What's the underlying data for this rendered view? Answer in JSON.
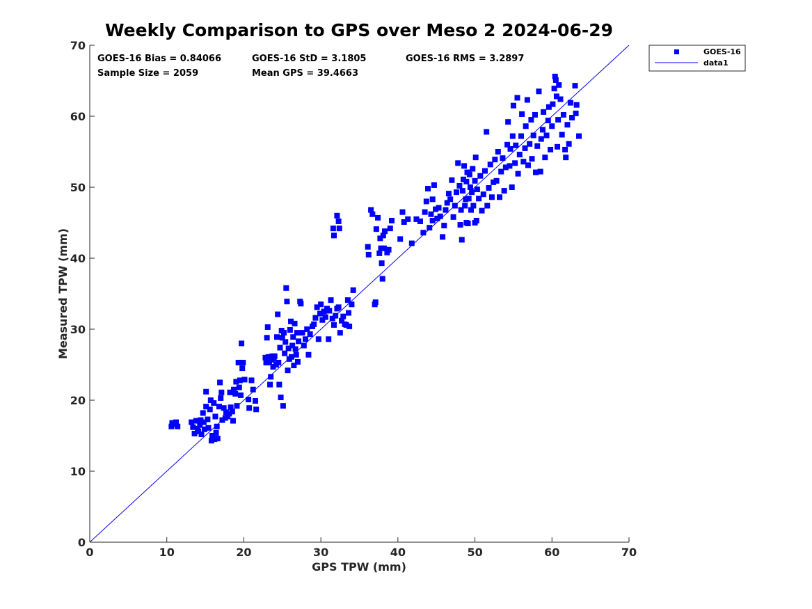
{
  "chart_data": {
    "type": "scatter",
    "title": "Weekly Comparison to GPS over Meso 2 2024-06-29",
    "xlabel": "GPS TPW (mm)",
    "ylabel": "Measured TPW (mm)",
    "xlim": [
      0,
      70
    ],
    "ylim": [
      0,
      70
    ],
    "xticks": [
      "0",
      "10",
      "20",
      "30",
      "40",
      "50",
      "60",
      "70"
    ],
    "yticks": [
      "0",
      "10",
      "20",
      "30",
      "40",
      "50",
      "60",
      "70"
    ],
    "grid": false,
    "legend_position": "outside top-right",
    "stats": {
      "bias": "GOES-16 Bias = 0.84066",
      "std": "GOES-16 StD = 3.1805",
      "rms": "GOES-16 RMS = 3.2897",
      "sample_size": "Sample Size = 2059",
      "mean_gps": "Mean GPS = 39.4663"
    },
    "series": [
      {
        "name": "GOES-16",
        "marker": "square",
        "color": "#0000ff",
        "points": [
          [
            10.6,
            16.3
          ],
          [
            10.7,
            16.8
          ],
          [
            11.2,
            16.9
          ],
          [
            11.4,
            16.3
          ],
          [
            11.1,
            16.6
          ],
          [
            13.2,
            16.9
          ],
          [
            13.4,
            16.2
          ],
          [
            13.6,
            15.3
          ],
          [
            13.8,
            17.1
          ],
          [
            14.0,
            16.0
          ],
          [
            14.1,
            15.6
          ],
          [
            14.3,
            16.5
          ],
          [
            14.4,
            17.2
          ],
          [
            14.5,
            15.2
          ],
          [
            14.7,
            18.2
          ],
          [
            14.8,
            16.9
          ],
          [
            14.9,
            15.9
          ],
          [
            15.1,
            19.1
          ],
          [
            15.1,
            21.2
          ],
          [
            15.3,
            17.3
          ],
          [
            15.4,
            16.1
          ],
          [
            15.6,
            18.7
          ],
          [
            15.7,
            20.0
          ],
          [
            15.8,
            14.3
          ],
          [
            15.9,
            15.0
          ],
          [
            16.1,
            19.6
          ],
          [
            16.2,
            14.5
          ],
          [
            16.3,
            17.7
          ],
          [
            16.4,
            15.4
          ],
          [
            16.5,
            16.3
          ],
          [
            16.6,
            14.6
          ],
          [
            16.8,
            19.1
          ],
          [
            16.9,
            22.5
          ],
          [
            17.0,
            20.3
          ],
          [
            17.1,
            21.1
          ],
          [
            17.2,
            17.2
          ],
          [
            17.4,
            18.9
          ],
          [
            17.6,
            17.5
          ],
          [
            17.7,
            18.3
          ],
          [
            17.9,
            17.7
          ],
          [
            18.1,
            18.1
          ],
          [
            18.2,
            21.1
          ],
          [
            18.3,
            19.0
          ],
          [
            18.5,
            18.4
          ],
          [
            18.6,
            17.1
          ],
          [
            18.7,
            21.5
          ],
          [
            18.9,
            20.9
          ],
          [
            19.0,
            22.6
          ],
          [
            19.1,
            19.2
          ],
          [
            19.3,
            25.3
          ],
          [
            19.4,
            21.8
          ],
          [
            19.5,
            22.8
          ],
          [
            19.6,
            20.7
          ],
          [
            19.7,
            28.0
          ],
          [
            19.8,
            24.5
          ],
          [
            19.9,
            25.3
          ],
          [
            20.1,
            22.9
          ],
          [
            20.6,
            20.1
          ],
          [
            20.7,
            18.9
          ],
          [
            21.0,
            22.8
          ],
          [
            21.2,
            21.5
          ],
          [
            21.5,
            19.9
          ],
          [
            21.6,
            18.7
          ],
          [
            22.8,
            26.0
          ],
          [
            22.9,
            25.3
          ],
          [
            23.0,
            28.8
          ],
          [
            23.1,
            30.3
          ],
          [
            23.2,
            26.1
          ],
          [
            23.3,
            25.3
          ],
          [
            23.4,
            22.2
          ],
          [
            23.5,
            23.3
          ],
          [
            23.6,
            25.7
          ],
          [
            23.7,
            26.2
          ],
          [
            23.8,
            24.7
          ],
          [
            23.9,
            25.8
          ],
          [
            24.0,
            26.2
          ],
          [
            24.2,
            25.0
          ],
          [
            24.3,
            28.9
          ],
          [
            24.4,
            32.1
          ],
          [
            24.5,
            25.3
          ],
          [
            24.6,
            22.2
          ],
          [
            24.7,
            27.4
          ],
          [
            24.8,
            20.4
          ],
          [
            24.9,
            29.8
          ],
          [
            25.0,
            28.8
          ],
          [
            25.1,
            19.2
          ],
          [
            25.2,
            29.5
          ],
          [
            25.3,
            26.6
          ],
          [
            25.4,
            28.2
          ],
          [
            25.5,
            35.8
          ],
          [
            25.6,
            33.9
          ],
          [
            25.7,
            24.2
          ],
          [
            25.8,
            27.3
          ],
          [
            25.9,
            25.8
          ],
          [
            26.0,
            29.9
          ],
          [
            26.1,
            31.1
          ],
          [
            26.2,
            26.1
          ],
          [
            26.3,
            27.7
          ],
          [
            26.4,
            28.9
          ],
          [
            26.5,
            24.9
          ],
          [
            26.6,
            30.8
          ],
          [
            26.7,
            27.2
          ],
          [
            26.8,
            26.4
          ],
          [
            26.9,
            29.5
          ],
          [
            27.0,
            25.4
          ],
          [
            27.1,
            28.3
          ],
          [
            27.3,
            33.9
          ],
          [
            27.4,
            33.6
          ],
          [
            27.6,
            29.5
          ],
          [
            27.8,
            27.7
          ],
          [
            28.0,
            28.6
          ],
          [
            28.2,
            30.0
          ],
          [
            28.4,
            26.4
          ],
          [
            28.6,
            29.3
          ],
          [
            28.9,
            30.4
          ],
          [
            29.1,
            30.7
          ],
          [
            29.3,
            31.6
          ],
          [
            29.5,
            33.1
          ],
          [
            29.7,
            28.6
          ],
          [
            29.9,
            32.2
          ],
          [
            30.0,
            33.5
          ],
          [
            30.2,
            31.3
          ],
          [
            30.4,
            32.5
          ],
          [
            30.6,
            31.7
          ],
          [
            30.8,
            32.9
          ],
          [
            31.0,
            28.6
          ],
          [
            31.1,
            32.6
          ],
          [
            31.3,
            34.1
          ],
          [
            31.5,
            31.5
          ],
          [
            31.7,
            30.6
          ],
          [
            31.9,
            31.9
          ],
          [
            32.1,
            32.9
          ],
          [
            32.3,
            33.1
          ],
          [
            32.5,
            29.5
          ],
          [
            32.7,
            31.2
          ],
          [
            32.9,
            31.8
          ],
          [
            33.1,
            30.7
          ],
          [
            33.3,
            30.6
          ],
          [
            33.5,
            34.1
          ],
          [
            33.6,
            32.3
          ],
          [
            33.7,
            30.4
          ],
          [
            34.0,
            33.5
          ],
          [
            34.2,
            35.5
          ],
          [
            31.6,
            44.2
          ],
          [
            31.7,
            43.2
          ],
          [
            32.1,
            46.0
          ],
          [
            32.3,
            45.2
          ],
          [
            32.4,
            44.2
          ],
          [
            36.1,
            41.6
          ],
          [
            36.2,
            40.5
          ],
          [
            36.5,
            46.8
          ],
          [
            36.7,
            46.2
          ],
          [
            37.0,
            33.5
          ],
          [
            37.1,
            33.8
          ],
          [
            37.2,
            44.1
          ],
          [
            37.4,
            45.7
          ],
          [
            37.6,
            40.7
          ],
          [
            37.7,
            42.8
          ],
          [
            37.8,
            41.4
          ],
          [
            37.9,
            39.3
          ],
          [
            38.0,
            37.1
          ],
          [
            38.1,
            43.2
          ],
          [
            38.2,
            41.4
          ],
          [
            38.3,
            43.8
          ],
          [
            38.6,
            40.8
          ],
          [
            38.8,
            41.2
          ],
          [
            39.0,
            44.2
          ],
          [
            39.2,
            45.3
          ],
          [
            40.3,
            42.7
          ],
          [
            40.6,
            46.5
          ],
          [
            40.8,
            45.1
          ],
          [
            41.3,
            45.5
          ],
          [
            41.8,
            42.1
          ],
          [
            42.4,
            45.5
          ],
          [
            42.9,
            45.2
          ],
          [
            43.3,
            43.6
          ],
          [
            43.5,
            46.5
          ],
          [
            43.7,
            48.0
          ],
          [
            43.9,
            49.8
          ],
          [
            44.1,
            44.3
          ],
          [
            44.3,
            46.2
          ],
          [
            44.5,
            48.3
          ],
          [
            44.7,
            50.3
          ],
          [
            44.9,
            46.9
          ],
          [
            45.1,
            45.6
          ],
          [
            45.3,
            47.1
          ],
          [
            45.5,
            45.9
          ],
          [
            45.8,
            43.0
          ],
          [
            46.0,
            44.6
          ],
          [
            46.2,
            46.8
          ],
          [
            46.4,
            47.8
          ],
          [
            46.6,
            49.1
          ],
          [
            46.8,
            48.3
          ],
          [
            47.0,
            51.0
          ],
          [
            47.2,
            45.8
          ],
          [
            47.4,
            47.4
          ],
          [
            47.6,
            49.3
          ],
          [
            47.8,
            53.4
          ],
          [
            48.0,
            50.2
          ],
          [
            48.1,
            44.7
          ],
          [
            48.2,
            46.8
          ],
          [
            48.3,
            42.6
          ],
          [
            48.4,
            49.5
          ],
          [
            48.5,
            51.1
          ],
          [
            48.6,
            53.0
          ],
          [
            48.7,
            47.4
          ],
          [
            48.8,
            48.3
          ],
          [
            48.9,
            50.8
          ],
          [
            49.0,
            52.1
          ],
          [
            49.1,
            44.9
          ],
          [
            49.2,
            48.4
          ],
          [
            49.3,
            51.8
          ],
          [
            49.4,
            50.0
          ],
          [
            49.5,
            46.8
          ],
          [
            49.6,
            49.3
          ],
          [
            49.7,
            52.6
          ],
          [
            49.8,
            47.4
          ],
          [
            50.0,
            50.9
          ],
          [
            50.1,
            54.2
          ],
          [
            50.3,
            49.7
          ],
          [
            50.5,
            48.4
          ],
          [
            50.7,
            51.6
          ],
          [
            50.9,
            46.7
          ],
          [
            51.1,
            49.0
          ],
          [
            51.3,
            52.3
          ],
          [
            51.5,
            57.8
          ],
          [
            51.6,
            47.4
          ],
          [
            51.8,
            49.9
          ],
          [
            52.0,
            53.2
          ],
          [
            52.2,
            48.6
          ],
          [
            52.4,
            50.7
          ],
          [
            52.6,
            53.9
          ],
          [
            52.8,
            50.9
          ],
          [
            53.0,
            55.0
          ],
          [
            53.2,
            48.6
          ],
          [
            53.4,
            52.2
          ],
          [
            53.6,
            54.1
          ],
          [
            53.8,
            49.5
          ],
          [
            54.0,
            52.8
          ],
          [
            54.2,
            56.0
          ],
          [
            54.3,
            59.2
          ],
          [
            54.5,
            53.0
          ],
          [
            54.6,
            55.4
          ],
          [
            54.8,
            50.0
          ],
          [
            54.9,
            57.2
          ],
          [
            55.0,
            61.5
          ],
          [
            55.2,
            53.4
          ],
          [
            55.3,
            55.9
          ],
          [
            55.5,
            62.6
          ],
          [
            55.6,
            51.9
          ],
          [
            55.8,
            54.6
          ],
          [
            56.0,
            57.2
          ],
          [
            56.1,
            60.3
          ],
          [
            56.3,
            53.6
          ],
          [
            56.5,
            55.5
          ],
          [
            56.6,
            58.6
          ],
          [
            56.8,
            62.3
          ],
          [
            56.9,
            53.1
          ],
          [
            57.1,
            56.1
          ],
          [
            57.3,
            59.5
          ],
          [
            57.4,
            54.0
          ],
          [
            57.6,
            57.3
          ],
          [
            57.8,
            60.2
          ],
          [
            57.9,
            52.1
          ],
          [
            58.1,
            55.8
          ],
          [
            58.3,
            63.5
          ],
          [
            58.5,
            52.2
          ],
          [
            58.6,
            56.8
          ],
          [
            58.8,
            58.1
          ],
          [
            58.9,
            60.6
          ],
          [
            59.1,
            54.2
          ],
          [
            59.3,
            57.3
          ],
          [
            59.5,
            59.4
          ],
          [
            59.6,
            61.3
          ],
          [
            59.8,
            55.3
          ],
          [
            60.0,
            58.6
          ],
          [
            60.1,
            61.7
          ],
          [
            60.3,
            63.9
          ],
          [
            60.4,
            65.6
          ],
          [
            60.5,
            65.1
          ],
          [
            60.6,
            62.8
          ],
          [
            60.7,
            55.7
          ],
          [
            60.8,
            59.5
          ],
          [
            60.9,
            64.4
          ],
          [
            61.1,
            62.4
          ],
          [
            61.3,
            57.4
          ],
          [
            61.5,
            60.2
          ],
          [
            61.7,
            55.3
          ],
          [
            61.8,
            54.2
          ],
          [
            62.0,
            58.8
          ],
          [
            62.2,
            56.1
          ],
          [
            62.4,
            61.9
          ],
          [
            62.6,
            59.8
          ],
          [
            63.0,
            64.3
          ],
          [
            63.1,
            60.4
          ],
          [
            63.2,
            61.6
          ],
          [
            63.5,
            57.2
          ],
          [
            50.0,
            45.0
          ],
          [
            50.2,
            45.3
          ],
          [
            48.9,
            45.0
          ],
          [
            44.5,
            45.3
          ]
        ]
      },
      {
        "name": "data1",
        "type": "line",
        "color": "#0000ff",
        "points": [
          [
            0,
            0
          ],
          [
            70,
            70
          ]
        ]
      }
    ]
  }
}
